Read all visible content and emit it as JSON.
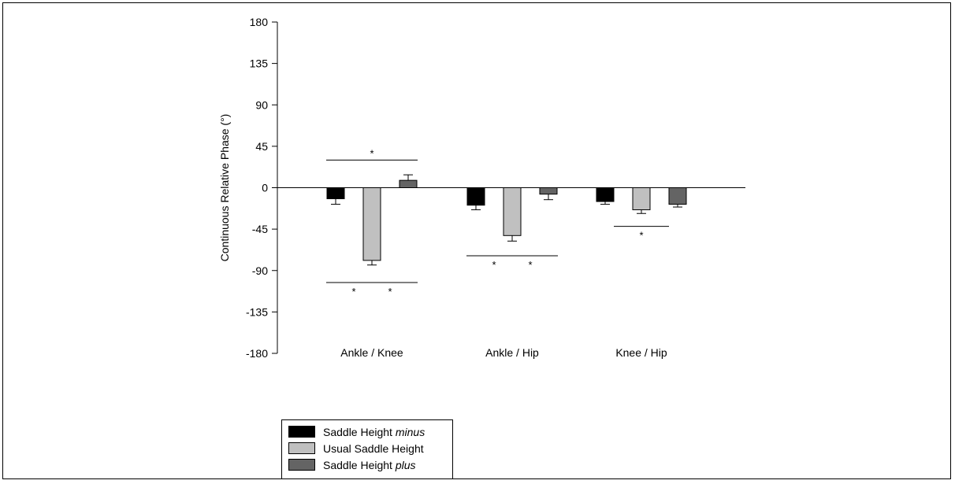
{
  "chart_data": {
    "type": "bar",
    "title": "",
    "xlabel": "",
    "ylabel": "Continuous Relative Phase (°)",
    "ylim": [
      -180,
      180
    ],
    "yticks": [
      "180",
      "135",
      "90",
      "45",
      "0",
      "-45",
      "-90",
      "-135",
      "-180"
    ],
    "categories": [
      "Ankle / Knee",
      "Ankle / Hip",
      "Knee / Hip"
    ],
    "series": [
      {
        "name": "Saddle Height minus",
        "values": [
          -12,
          -19,
          -15
        ],
        "errors": [
          6,
          5,
          3
        ],
        "color": "#000000"
      },
      {
        "name": "Usual Saddle Height",
        "values": [
          -79,
          -52,
          -24
        ],
        "errors": [
          5,
          6,
          4
        ],
        "color": "#c0c0c0"
      },
      {
        "name": "Saddle Height plus",
        "values": [
          8,
          -7,
          -18
        ],
        "errors": [
          6,
          6,
          3
        ],
        "color": "#646464"
      }
    ],
    "annotations": [
      {
        "text": "*",
        "category": 0,
        "from": 0,
        "to": 2,
        "y": 30
      },
      {
        "text": "*",
        "category": 0,
        "from": 0,
        "to": 1,
        "y": -103
      },
      {
        "text": "*",
        "category": 0,
        "from": 1,
        "to": 2,
        "y": -103
      },
      {
        "text": "*",
        "category": 1,
        "from": 0,
        "to": 1,
        "y": -74
      },
      {
        "text": "*",
        "category": 1,
        "from": 1,
        "to": 2,
        "y": -74
      },
      {
        "text": "*",
        "category": 2,
        "from": 0.5,
        "to": 1.5,
        "y": -42
      }
    ],
    "legend": {
      "placement": "bottom-left",
      "entries": [
        {
          "prefix": "Saddle Height ",
          "emph": "minus",
          "color": "#000000"
        },
        {
          "prefix": "Usual Saddle Height",
          "emph": "",
          "color": "#c0c0c0"
        },
        {
          "prefix": "Saddle Height ",
          "emph": "plus",
          "color": "#646464"
        }
      ]
    }
  }
}
